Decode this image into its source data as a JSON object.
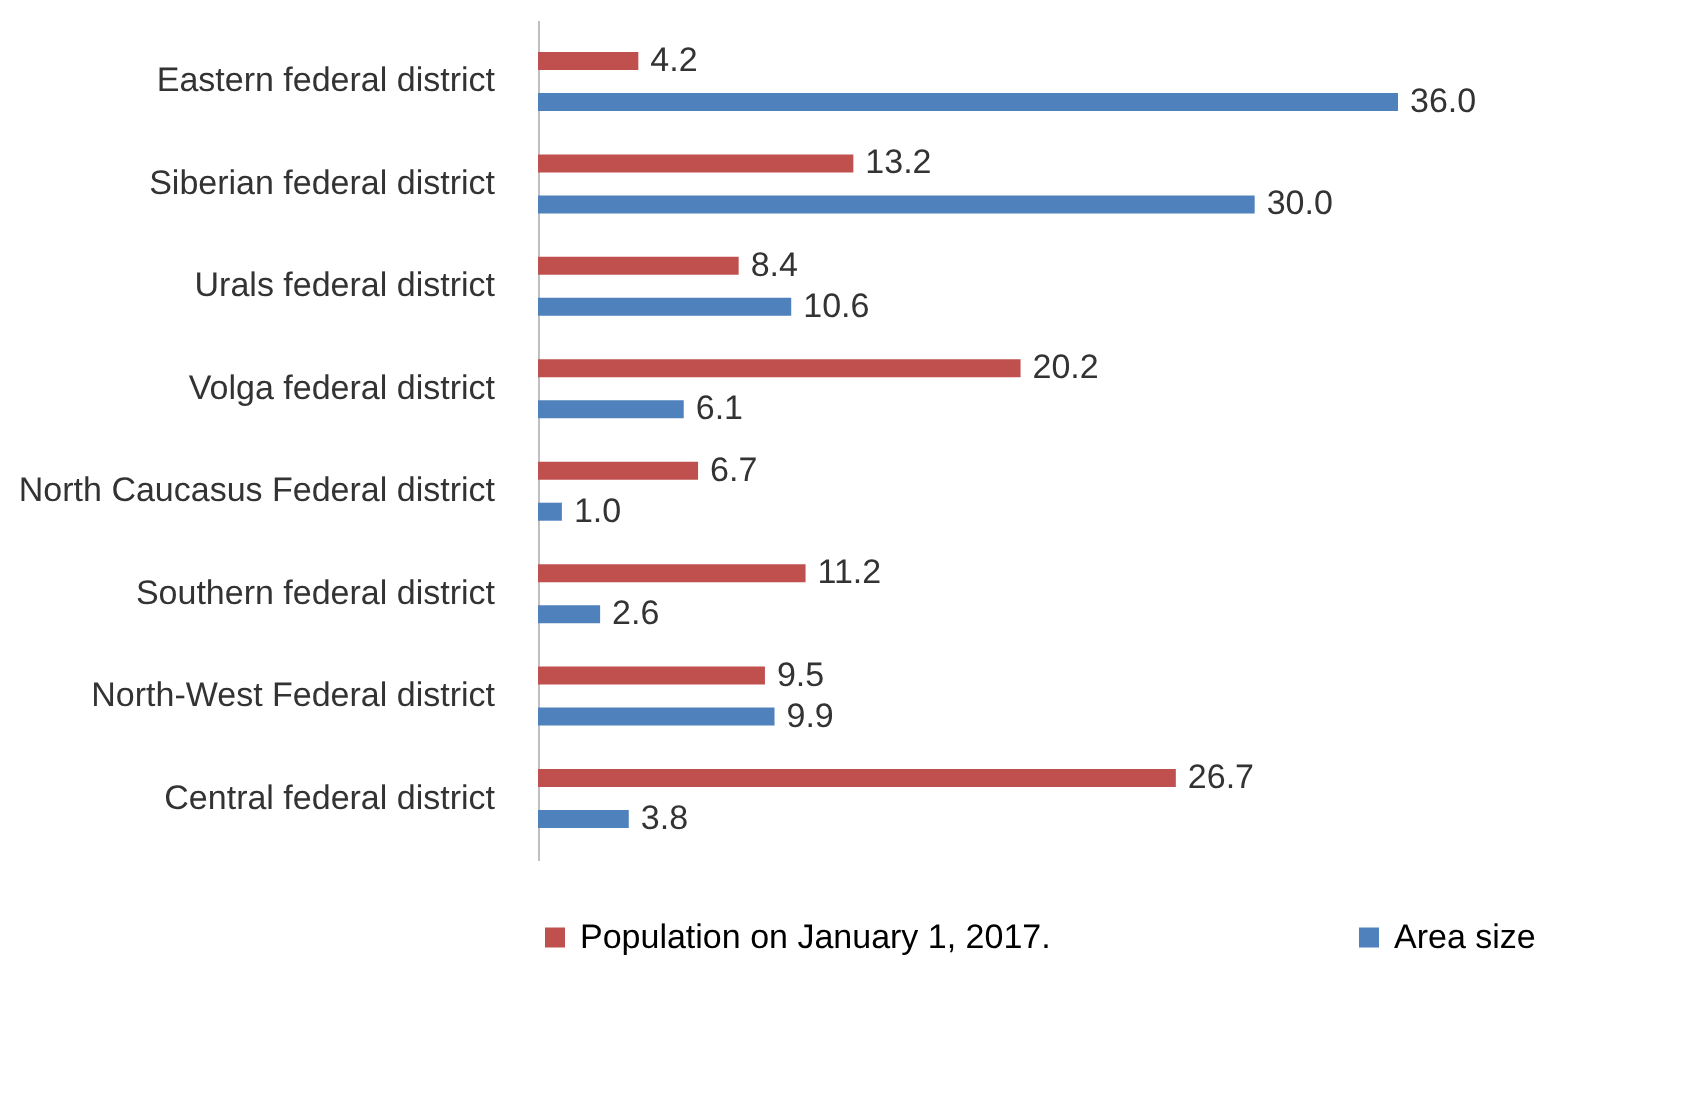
{
  "chart_data": {
    "type": "bar",
    "orientation": "horizontal",
    "legend": "bottom",
    "grid": false,
    "categories": [
      "Eastern federal district",
      "Siberian federal district",
      "Urals federal district",
      "Volga federal district",
      "North Caucasus Federal district",
      "Southern federal district",
      "North-West Federal district",
      "Central federal district"
    ],
    "series": [
      {
        "name": "Population on January 1, 2017.",
        "color": "#c0504d",
        "values": [
          4.2,
          13.2,
          8.4,
          20.2,
          6.7,
          11.2,
          9.5,
          26.7
        ],
        "value_labels": [
          "4.2",
          "13.2",
          "8.4",
          "20.2",
          "6.7",
          "11.2",
          "9.5",
          "26.7"
        ]
      },
      {
        "name": "Area size",
        "color": "#4f81bd",
        "values": [
          36.0,
          30.0,
          10.6,
          6.1,
          1.0,
          2.6,
          9.9,
          3.8
        ],
        "value_labels": [
          "36.0",
          "30.0",
          "10.6",
          "6.1",
          "1.0",
          "2.6",
          "9.9",
          "3.8"
        ]
      }
    ]
  }
}
